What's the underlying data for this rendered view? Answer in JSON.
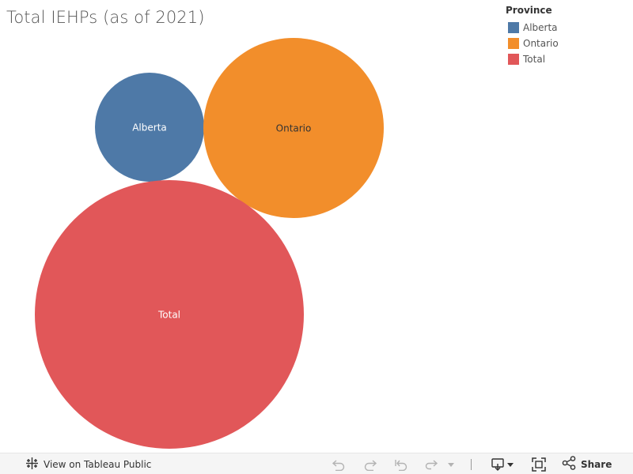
{
  "title": "Total IEHPs (as of 2021)",
  "legend": {
    "title": "Province",
    "items": [
      {
        "label": "Alberta",
        "color": "#4e79a7"
      },
      {
        "label": "Ontario",
        "color": "#f28e2b"
      },
      {
        "label": "Total",
        "color": "#e15759"
      }
    ]
  },
  "chart_data": {
    "type": "bubble",
    "title": "Total IEHPs (as of 2021)",
    "legend_title": "Province",
    "legend_position": "top-right",
    "series": [
      {
        "name": "Alberta",
        "label": "Alberta",
        "color": "#4e79a7",
        "label_color": "#ffffff"
      },
      {
        "name": "Ontario",
        "label": "Ontario",
        "color": "#f28e2b",
        "label_color": "#333333"
      },
      {
        "name": "Total",
        "label": "Total",
        "color": "#e15759",
        "label_color": "#ffffff"
      }
    ]
  },
  "toolbar": {
    "view_label": "View on Tableau Public",
    "share_label": "Share",
    "icons": [
      "tableau-logo-icon",
      "undo-icon",
      "redo-icon",
      "revert-icon",
      "refresh-icon",
      "dropdown-arrow-icon",
      "download-icon",
      "fullscreen-icon",
      "share-icon"
    ]
  }
}
